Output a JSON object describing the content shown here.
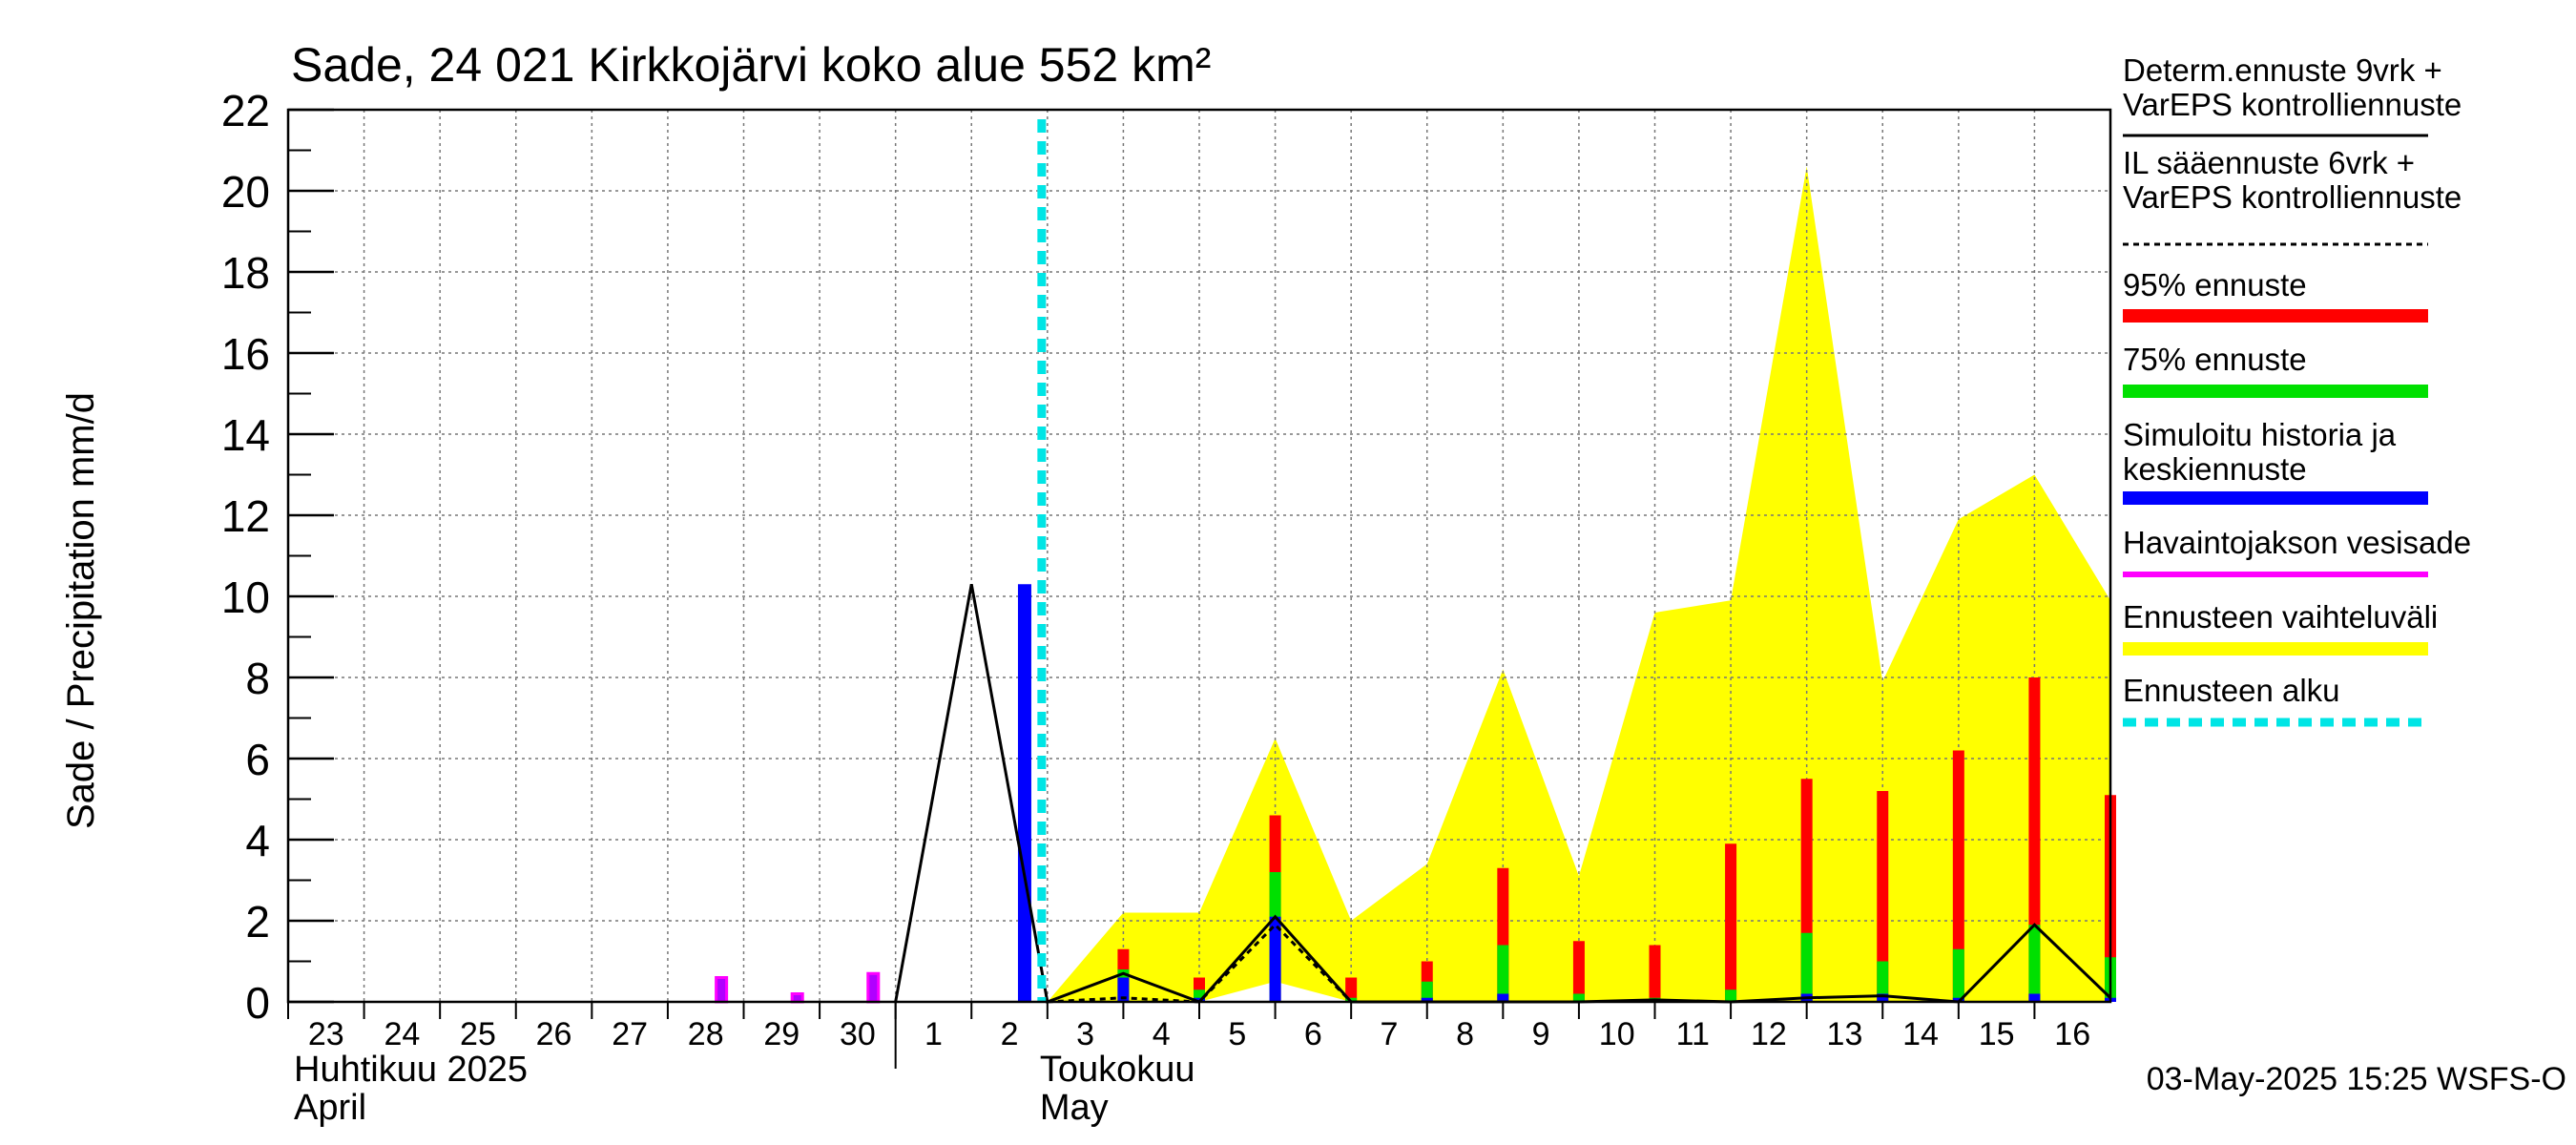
{
  "chart_data": {
    "type": "bar",
    "title": "Sade, 24 021 Kirkkojärvi koko alue 552 km²",
    "ylabel": "Sade / Precipitation   mm/d",
    "ylim": [
      0,
      22
    ],
    "yticks": [
      0,
      2,
      4,
      6,
      8,
      10,
      12,
      14,
      16,
      18,
      20,
      22
    ],
    "grid": true,
    "x_day_labels": [
      "23",
      "24",
      "25",
      "26",
      "27",
      "28",
      "29",
      "30",
      "1",
      "2",
      "3",
      "4",
      "5",
      "6",
      "7",
      "8",
      "9",
      "10",
      "11",
      "12",
      "13",
      "14",
      "15",
      "16"
    ],
    "month_labels": [
      {
        "fi": "Huhtikuu  2025",
        "en": "April"
      },
      {
        "fi": "Toukokuu",
        "en": "May"
      }
    ],
    "forecast_start_day": 10,
    "timestamp": "03-May-2025 15:25 WSFS-O",
    "colors": {
      "p95": "#ff0000",
      "p75": "#00e000",
      "median": "#0000ff",
      "observed": "#ff00ff",
      "range": "#ffff00",
      "forecast_start": "#00e5e5",
      "det": "#000000"
    },
    "legend": [
      {
        "label": "Determ.ennuste 9vrk +\nVarEPS kontrolliennuste",
        "style": "solid-black"
      },
      {
        "label": "IL sääennuste 6vrk  +\n  VarEPS kontrolliennuste",
        "style": "dashed-black"
      },
      {
        "label": "95% ennuste",
        "style": "red"
      },
      {
        "label": "75% ennuste",
        "style": "green"
      },
      {
        "label": "Simuloitu historia ja\nkeskiennuste",
        "style": "blue"
      },
      {
        "label": "Havaintojakson vesisade",
        "style": "magenta"
      },
      {
        "label": "Ennusteen vaihteluväli",
        "style": "yellow"
      },
      {
        "label": "Ennusteen alku",
        "style": "cyan-dashed"
      }
    ],
    "observed_bars": [
      {
        "day": 5.7,
        "value": 0.6
      },
      {
        "day": 6.7,
        "value": 0.2
      },
      {
        "day": 7.7,
        "value": 0.7
      }
    ],
    "simulated_bars": [
      {
        "day": 9.7,
        "value": 10.3
      }
    ],
    "forecast_bars": [
      {
        "day": 11.0,
        "p95": 1.3,
        "p75": 0.8,
        "median": 0.6
      },
      {
        "day": 12.0,
        "p95": 0.6,
        "p75": 0.3,
        "median": 0.1
      },
      {
        "day": 13.0,
        "p95": 4.6,
        "p75": 3.2,
        "median": 2.1
      },
      {
        "day": 14.0,
        "p95": 0.6,
        "p75": 0.1,
        "median": 0.0
      },
      {
        "day": 15.0,
        "p95": 1.0,
        "p75": 0.5,
        "median": 0.1
      },
      {
        "day": 16.0,
        "p95": 3.3,
        "p75": 1.4,
        "median": 0.2
      },
      {
        "day": 17.0,
        "p95": 1.5,
        "p75": 0.2,
        "median": 0.0
      },
      {
        "day": 18.0,
        "p95": 1.4,
        "p75": 0.1,
        "median": 0.0
      },
      {
        "day": 19.0,
        "p95": 3.9,
        "p75": 0.3,
        "median": 0.0
      },
      {
        "day": 20.0,
        "p95": 5.5,
        "p75": 1.7,
        "median": 0.2
      },
      {
        "day": 21.0,
        "p95": 5.2,
        "p75": 1.0,
        "median": 0.2
      },
      {
        "day": 22.0,
        "p95": 6.2,
        "p75": 1.3,
        "median": 0.1
      },
      {
        "day": 23.0,
        "p95": 8.0,
        "p75": 1.9,
        "median": 0.2
      },
      {
        "day": 24.0,
        "p95": 5.1,
        "p75": 1.1,
        "median": 0.1
      }
    ],
    "range_upper": [
      {
        "day": 10.0,
        "value": 0.0
      },
      {
        "day": 11.0,
        "value": 2.2
      },
      {
        "day": 12.0,
        "value": 2.2
      },
      {
        "day": 13.0,
        "value": 6.5
      },
      {
        "day": 14.0,
        "value": 2.0
      },
      {
        "day": 15.0,
        "value": 3.4
      },
      {
        "day": 16.0,
        "value": 8.2
      },
      {
        "day": 17.0,
        "value": 3.1
      },
      {
        "day": 18.0,
        "value": 9.6
      },
      {
        "day": 19.0,
        "value": 9.9
      },
      {
        "day": 20.0,
        "value": 20.6
      },
      {
        "day": 21.0,
        "value": 7.9
      },
      {
        "day": 22.0,
        "value": 11.9
      },
      {
        "day": 23.0,
        "value": 13.0
      },
      {
        "day": 24.0,
        "value": 9.9
      }
    ],
    "range_lower": [
      {
        "day": 10.0,
        "value": 0.0
      },
      {
        "day": 11.0,
        "value": 0.0
      },
      {
        "day": 12.0,
        "value": 0.0
      },
      {
        "day": 13.0,
        "value": 0.5
      },
      {
        "day": 14.0,
        "value": 0.0
      },
      {
        "day": 15.0,
        "value": 0.0
      },
      {
        "day": 16.0,
        "value": 0.0
      },
      {
        "day": 17.0,
        "value": 0.0
      },
      {
        "day": 18.0,
        "value": 0.0
      },
      {
        "day": 19.0,
        "value": 0.0
      },
      {
        "day": 20.0,
        "value": 0.0
      },
      {
        "day": 21.0,
        "value": 0.0
      },
      {
        "day": 22.0,
        "value": 0.0
      },
      {
        "day": 23.0,
        "value": 0.0
      },
      {
        "day": 24.0,
        "value": 0.0
      }
    ],
    "det_line": [
      {
        "day": 8.0,
        "value": 0.0
      },
      {
        "day": 9.0,
        "value": 10.3
      },
      {
        "day": 10.0,
        "value": 0.0
      },
      {
        "day": 11.0,
        "value": 0.7
      },
      {
        "day": 12.0,
        "value": 0.0
      },
      {
        "day": 13.0,
        "value": 2.1
      },
      {
        "day": 14.0,
        "value": 0.0
      },
      {
        "day": 15.0,
        "value": 0.0
      },
      {
        "day": 16.0,
        "value": 0.0
      },
      {
        "day": 17.0,
        "value": 0.0
      },
      {
        "day": 18.0,
        "value": 0.05
      },
      {
        "day": 19.0,
        "value": 0.0
      },
      {
        "day": 20.0,
        "value": 0.1
      },
      {
        "day": 21.0,
        "value": 0.15
      },
      {
        "day": 22.0,
        "value": 0.0
      },
      {
        "day": 23.0,
        "value": 1.9
      },
      {
        "day": 24.0,
        "value": 0.1
      }
    ],
    "il_line": [
      {
        "day": 10.0,
        "value": 0.0
      },
      {
        "day": 11.0,
        "value": 0.1
      },
      {
        "day": 12.0,
        "value": 0.0
      },
      {
        "day": 13.0,
        "value": 1.9
      },
      {
        "day": 14.0,
        "value": 0.0
      },
      {
        "day": 15.0,
        "value": 0.0
      },
      {
        "day": 16.0,
        "value": 0.0
      }
    ]
  }
}
